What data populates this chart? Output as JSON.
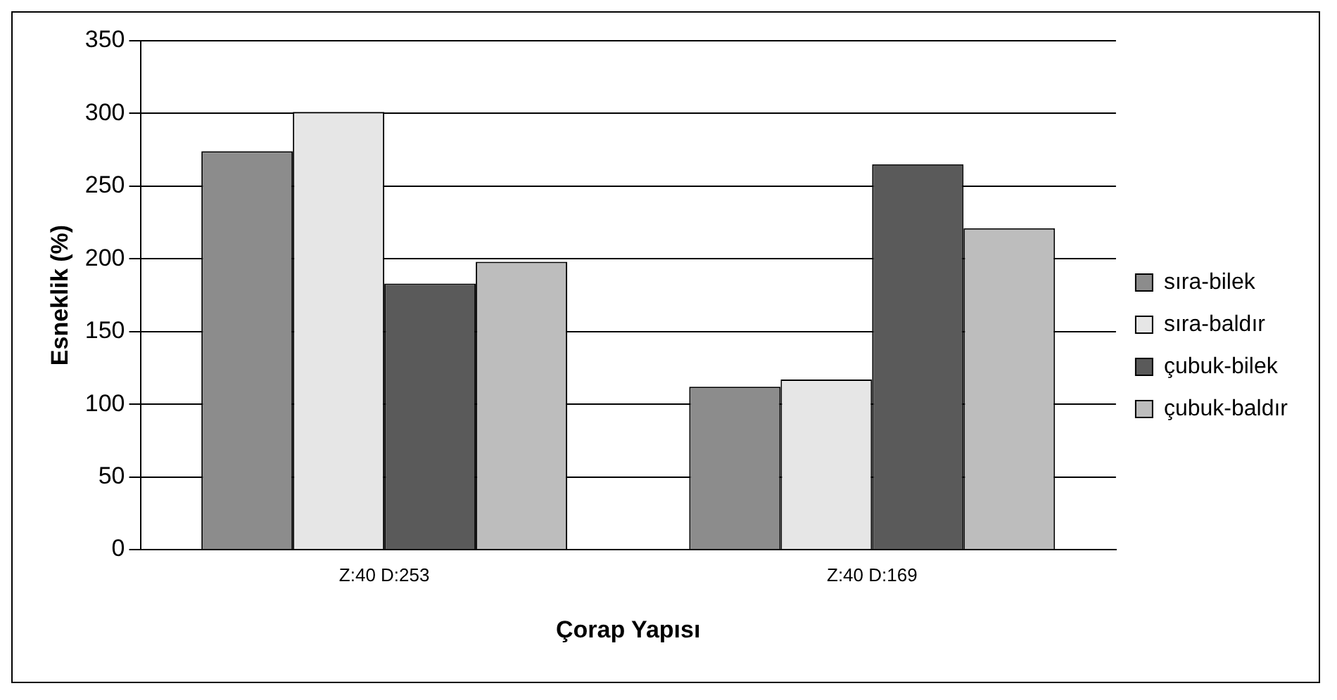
{
  "chart_data": {
    "type": "bar",
    "xlabel": "Çorap Yapısı",
    "ylabel": "Esneklik (%)",
    "categories": [
      "Z:40 D:253",
      "Z:40 D:169"
    ],
    "series": [
      {
        "name": "sıra-bilek",
        "color": "#8c8c8c",
        "values": [
          274,
          112
        ]
      },
      {
        "name": "sıra-baldır",
        "color": "#e6e6e6",
        "values": [
          301,
          117
        ]
      },
      {
        "name": "çubuk-bilek",
        "color": "#5a5a5a",
        "values": [
          183,
          265
        ]
      },
      {
        "name": "çubuk-baldır",
        "color": "#bdbdbd",
        "values": [
          198,
          221
        ]
      }
    ],
    "ylim": [
      0,
      350
    ],
    "yticks": [
      0,
      50,
      100,
      150,
      200,
      250,
      300,
      350
    ],
    "grid": "y",
    "legend": "right"
  }
}
